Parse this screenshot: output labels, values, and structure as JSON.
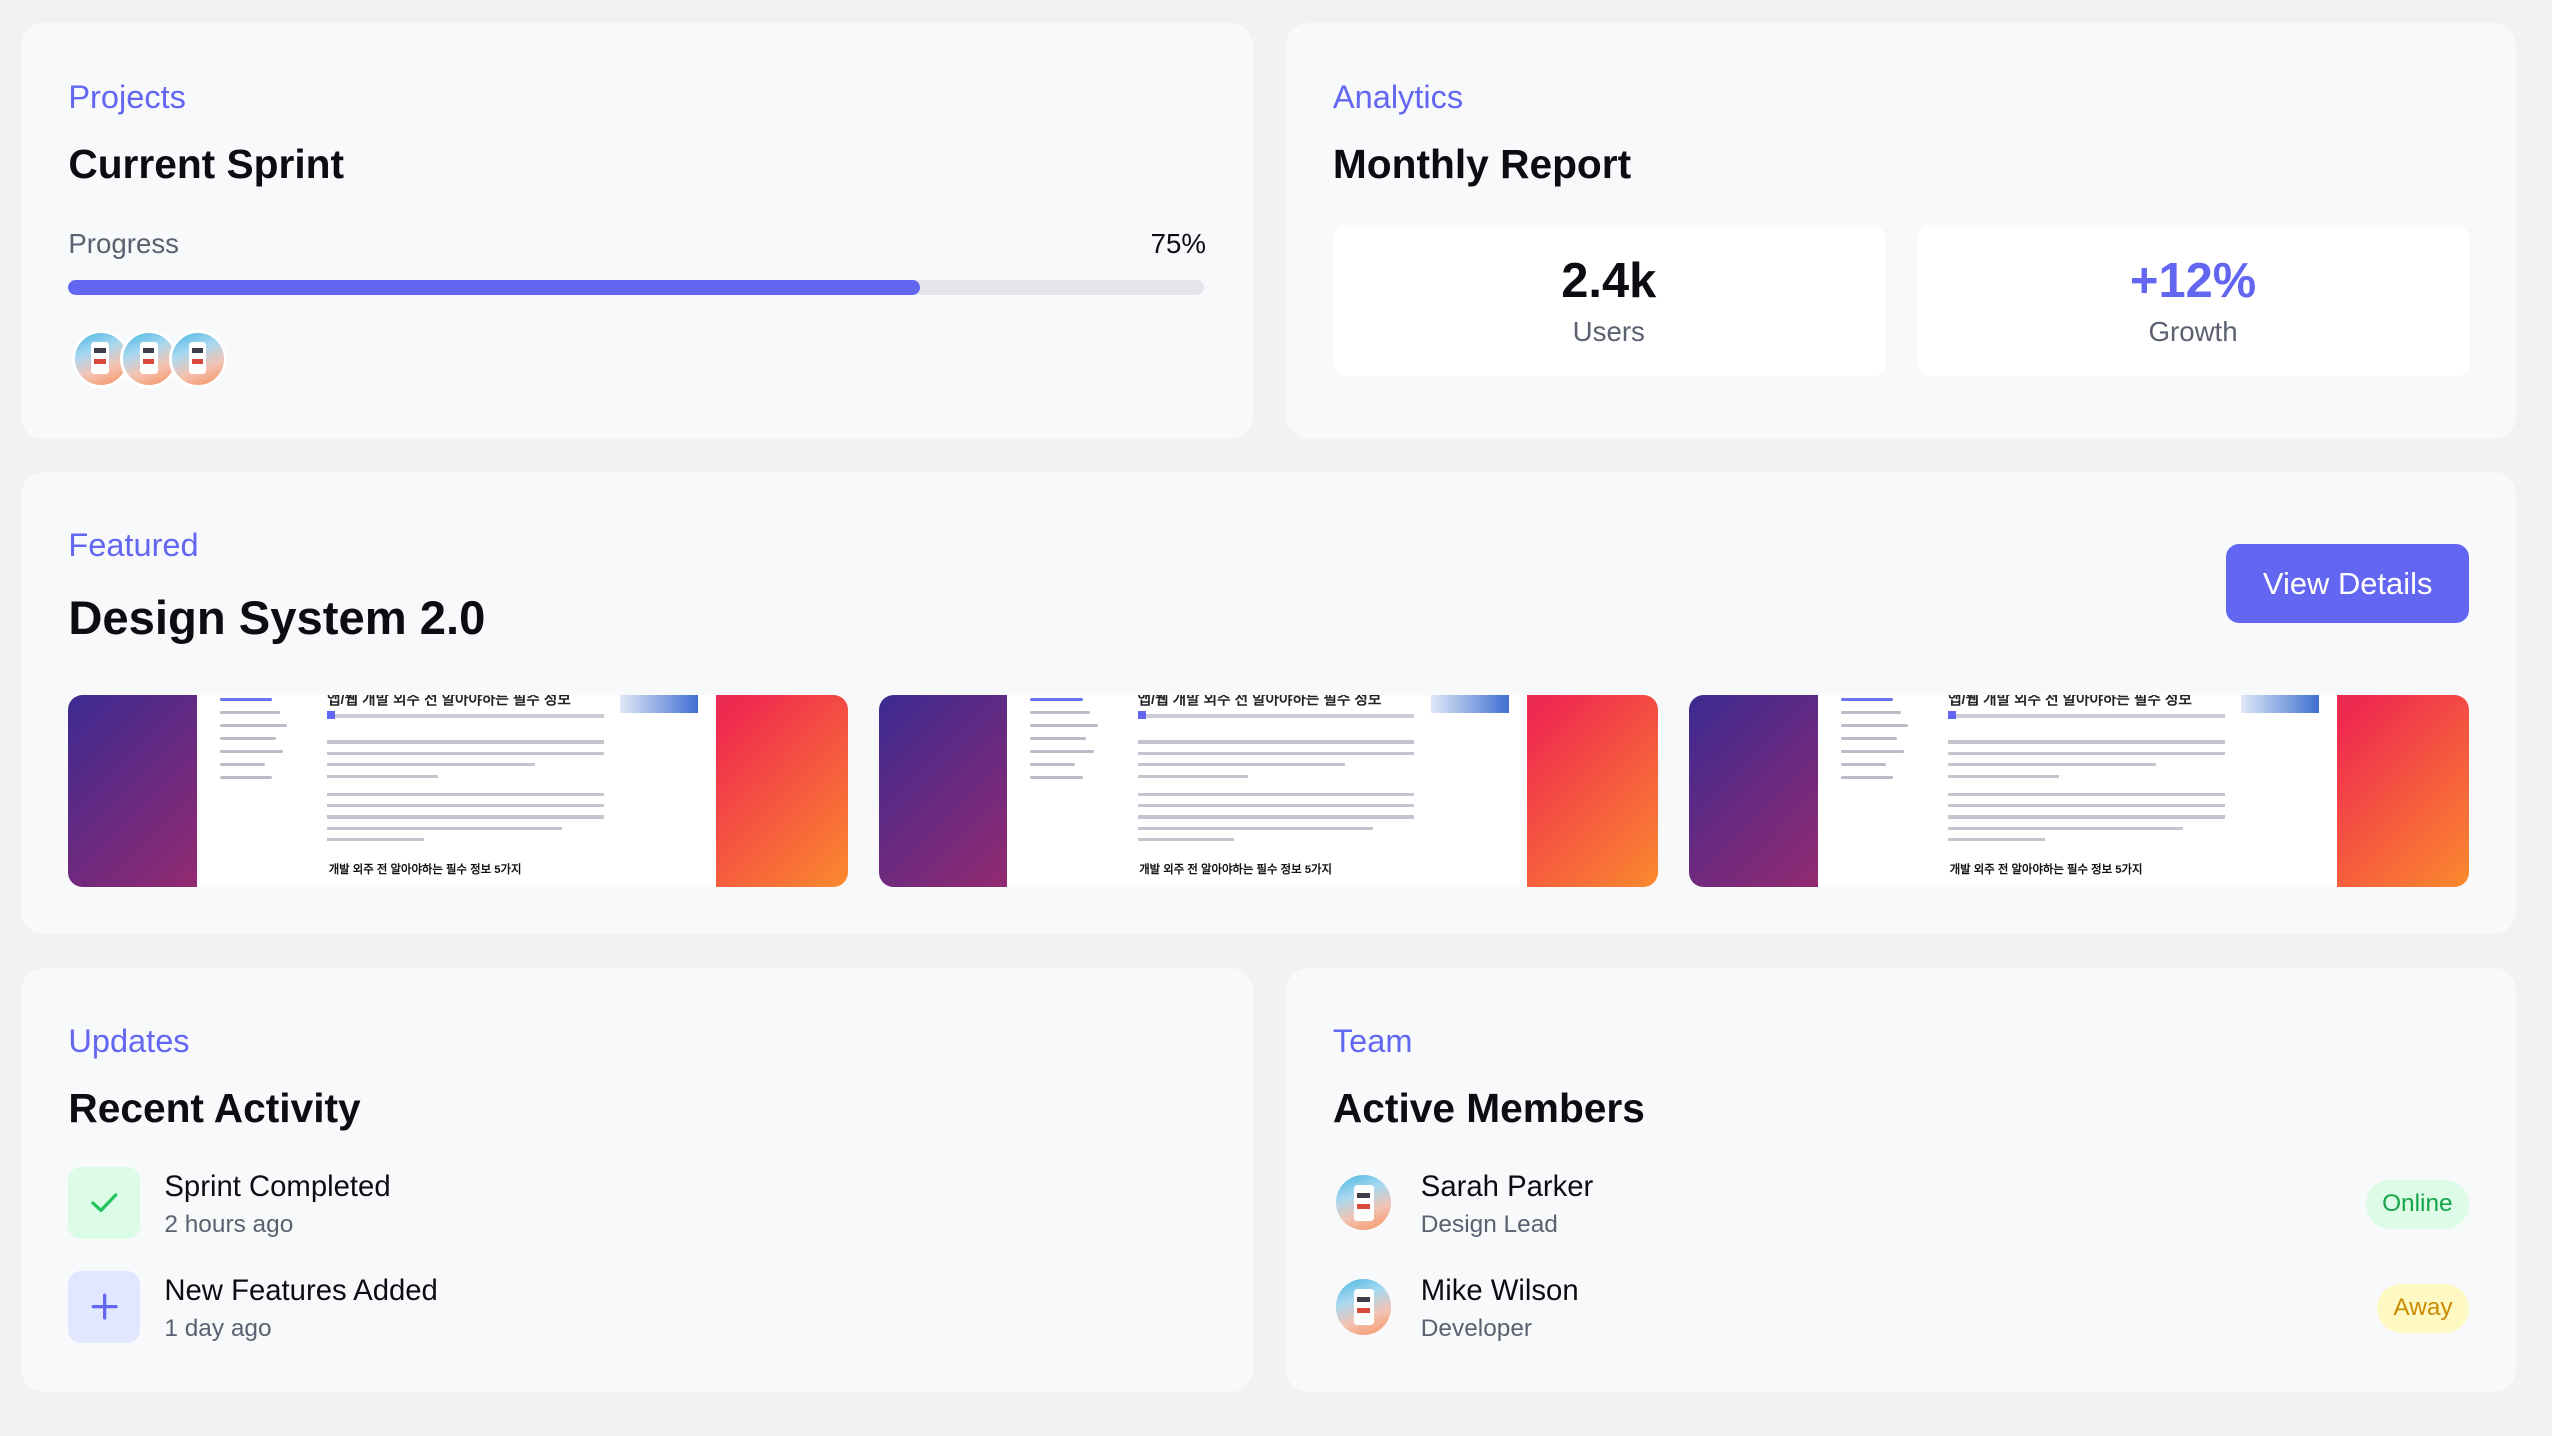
{
  "projects": {
    "eyebrow": "Projects",
    "title": "Current Sprint",
    "progress_label": "Progress",
    "progress_text": "75%",
    "progress_fraction": 0.75,
    "accent_color": "#6366f1"
  },
  "analytics": {
    "eyebrow": "Analytics",
    "title": "Monthly Report",
    "stats": [
      {
        "value": "2.4k",
        "label": "Users",
        "color": "#0b0d12"
      },
      {
        "value": "+12%",
        "label": "Growth",
        "color": "#6366f1"
      }
    ]
  },
  "featured": {
    "eyebrow": "Featured",
    "title": "Design System 2.0",
    "button_label": "View Details",
    "thumbnail_caption": "개발 외주 전 알아야하는 필수 정보 5가지"
  },
  "updates": {
    "eyebrow": "Updates",
    "title": "Recent Activity",
    "items": [
      {
        "title": "Sprint Completed",
        "time": "2 hours ago",
        "icon": "check-icon",
        "icon_color": "#22c55e",
        "icon_bg": "#dcfce7"
      },
      {
        "title": "New Features Added",
        "time": "1 day ago",
        "icon": "plus-icon",
        "icon_color": "#6366f1",
        "icon_bg": "#e0e7ff"
      }
    ]
  },
  "team": {
    "eyebrow": "Team",
    "title": "Active Members",
    "members": [
      {
        "name": "Sarah Parker",
        "role": "Design Lead",
        "status": "Online",
        "status_color": "#16a34a",
        "status_bg": "#dcfce7"
      },
      {
        "name": "Mike Wilson",
        "role": "Developer",
        "status": "Away",
        "status_color": "#ca8a04",
        "status_bg": "#fef9c3"
      }
    ]
  }
}
